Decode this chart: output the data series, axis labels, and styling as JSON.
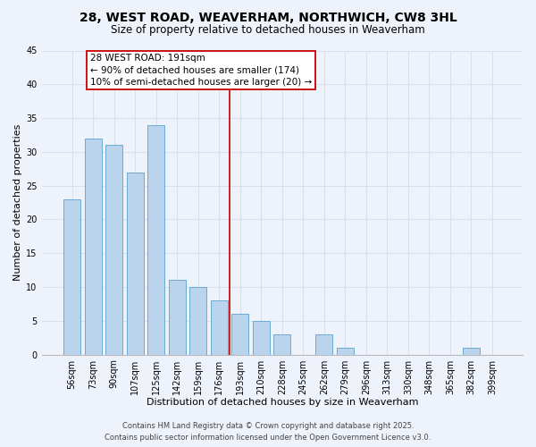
{
  "title": "28, WEST ROAD, WEAVERHAM, NORTHWICH, CW8 3HL",
  "subtitle": "Size of property relative to detached houses in Weaverham",
  "xlabel": "Distribution of detached houses by size in Weaverham",
  "ylabel": "Number of detached properties",
  "bar_labels": [
    "56sqm",
    "73sqm",
    "90sqm",
    "107sqm",
    "125sqm",
    "142sqm",
    "159sqm",
    "176sqm",
    "193sqm",
    "210sqm",
    "228sqm",
    "245sqm",
    "262sqm",
    "279sqm",
    "296sqm",
    "313sqm",
    "330sqm",
    "348sqm",
    "365sqm",
    "382sqm",
    "399sqm"
  ],
  "bar_values": [
    23,
    32,
    31,
    27,
    34,
    11,
    10,
    8,
    6,
    5,
    3,
    0,
    3,
    1,
    0,
    0,
    0,
    0,
    0,
    1,
    0
  ],
  "bar_color": "#bad4ee",
  "bar_edge_color": "#6aaad4",
  "background_color": "#eef2fb",
  "grid_color": "#d8e0f0",
  "vline_color": "#cc1111",
  "annotation_text": "28 WEST ROAD: 191sqm\n← 90% of detached houses are smaller (174)\n10% of semi-detached houses are larger (20) →",
  "annotation_box_facecolor": "#ffffff",
  "annotation_border_color": "#cc1111",
  "ylim": [
    0,
    45
  ],
  "yticks": [
    0,
    5,
    10,
    15,
    20,
    25,
    30,
    35,
    40,
    45
  ],
  "footer_line1": "Contains HM Land Registry data © Crown copyright and database right 2025.",
  "footer_line2": "Contains public sector information licensed under the Open Government Licence v3.0.",
  "title_fontsize": 10,
  "subtitle_fontsize": 8.5,
  "axis_label_fontsize": 8,
  "tick_fontsize": 7,
  "annotation_fontsize": 7.5,
  "footer_fontsize": 6
}
